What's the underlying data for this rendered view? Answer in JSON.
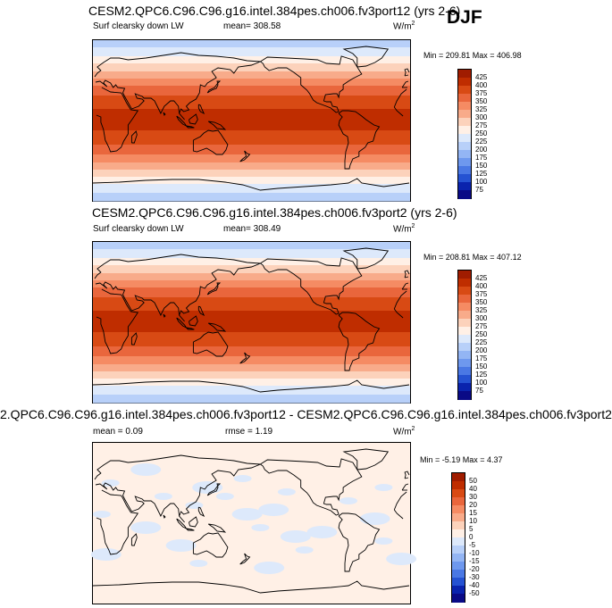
{
  "season": "DJF",
  "panels": [
    {
      "title": "CESM2.QPC6.C96.C96.g16.intel.384pes.ch006.fv3port12 (yrs 2-6)",
      "left_label": "Surf clearsky down LW",
      "center_label": "mean= 308.58",
      "units": "W/m",
      "units_sup": "2",
      "minmax": "Min = 209.81 Max = 406.98",
      "colorbar_levels": [
        "425",
        "400",
        "375",
        "350",
        "325",
        "300",
        "275",
        "250",
        "225",
        "200",
        "175",
        "150",
        "125",
        "100",
        "75"
      ],
      "colorbar_colors": [
        "#a01c00",
        "#bf2d00",
        "#d84a14",
        "#e9663c",
        "#f58b63",
        "#f8ab8a",
        "#fcd2bb",
        "#fff0e6",
        "#dde9fb",
        "#b8d0f9",
        "#93b5f4",
        "#6e98ee",
        "#4a78e4",
        "#2552d2",
        "#0a23ad",
        "#0a0a86"
      ]
    },
    {
      "title": "CESM2.QPC6.C96.C96.g16.intel.384pes.ch006.fv3port2 (yrs 2-6)",
      "left_label": "Surf clearsky down LW",
      "center_label": "mean= 308.49",
      "units": "W/m",
      "units_sup": "2",
      "minmax": "Min = 208.81 Max = 407.12",
      "colorbar_levels": [
        "425",
        "400",
        "375",
        "350",
        "325",
        "300",
        "275",
        "250",
        "225",
        "200",
        "175",
        "150",
        "125",
        "100",
        "75"
      ],
      "colorbar_colors": [
        "#a01c00",
        "#bf2d00",
        "#d84a14",
        "#e9663c",
        "#f58b63",
        "#f8ab8a",
        "#fcd2bb",
        "#fff0e6",
        "#dde9fb",
        "#b8d0f9",
        "#93b5f4",
        "#6e98ee",
        "#4a78e4",
        "#2552d2",
        "#0a23ad",
        "#0a0a86"
      ]
    },
    {
      "title": "2.QPC6.C96.C96.g16.intel.384pes.ch006.fv3port12 - CESM2.QPC6.C96.C96.g16.intel.384pes.ch006.fv3port2",
      "left_label": "mean =  0.09",
      "center_label": "rmse =  1.19",
      "units": "W/m",
      "units_sup": "2",
      "minmax": "Min = -5.19 Max =  4.37",
      "colorbar_levels": [
        "50",
        "40",
        "30",
        "20",
        "15",
        "10",
        "5",
        "0",
        "-5",
        "-10",
        "-15",
        "-20",
        "-30",
        "-40",
        "-50"
      ],
      "colorbar_colors": [
        "#a01c00",
        "#bf2d00",
        "#d84a14",
        "#e9663c",
        "#f58b63",
        "#f8ab8a",
        "#fcd2bb",
        "#fff0e6",
        "#dde9fb",
        "#b8d0f9",
        "#93b5f4",
        "#6e98ee",
        "#4a78e4",
        "#2552d2",
        "#0a23ad",
        "#0a0a86"
      ]
    }
  ]
}
